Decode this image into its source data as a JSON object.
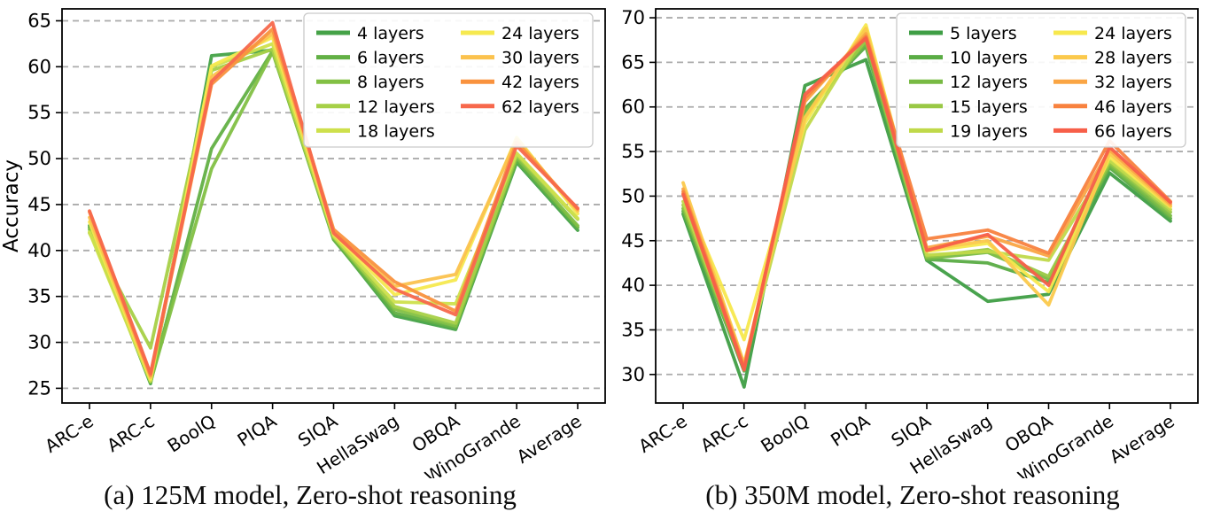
{
  "figure": {
    "caption_a": "(a) 125M model, Zero-shot reasoning",
    "caption_b": "(b) 350M model, Zero-shot reasoning"
  },
  "chart_data": [
    {
      "type": "line",
      "title": "",
      "xlabel": "",
      "ylabel": "Accuracy",
      "ylim": [
        23.4,
        66.3
      ],
      "yticks": [
        25,
        30,
        35,
        40,
        45,
        50,
        55,
        60,
        65
      ],
      "grid": "dashed-horizontal",
      "legend_position": "upper right",
      "legend_suffix": " layers",
      "categories": [
        "ARC-e",
        "ARC-c",
        "BoolQ",
        "PIQA",
        "SIQA",
        "HellaSwag",
        "OBQA",
        "WinoGrande",
        "Average"
      ],
      "series": [
        {
          "name": "4 layers",
          "color": "#45a247",
          "values": [
            42.7,
            25.5,
            61.2,
            61.8,
            41.3,
            32.9,
            31.4,
            49.6,
            42.2
          ]
        },
        {
          "name": "6 layers",
          "color": "#62b045",
          "values": [
            42.5,
            25.6,
            51.1,
            61.7,
            41.2,
            33.2,
            31.6,
            49.8,
            42.5
          ]
        },
        {
          "name": "8 layers",
          "color": "#82c044",
          "values": [
            42.3,
            25.7,
            48.9,
            61.6,
            41.4,
            33.6,
            31.8,
            50.1,
            42.7
          ]
        },
        {
          "name": "12 layers",
          "color": "#a6d047",
          "values": [
            41.9,
            29.4,
            59.6,
            61.9,
            41.5,
            33.9,
            32.1,
            50.4,
            43.4
          ]
        },
        {
          "name": "18 layers",
          "color": "#cee04c",
          "values": [
            42.0,
            25.8,
            60.0,
            62.5,
            41.6,
            34.4,
            34.2,
            50.6,
            43.5
          ]
        },
        {
          "name": "24 layers",
          "color": "#f6e94f",
          "values": [
            43.1,
            26.0,
            60.1,
            63.2,
            41.8,
            35.2,
            36.8,
            52.3,
            44.0
          ]
        },
        {
          "name": "30 layers",
          "color": "#fbc24e",
          "values": [
            43.6,
            26.2,
            58.9,
            63.6,
            42.0,
            36.1,
            37.4,
            52.1,
            44.3
          ]
        },
        {
          "name": "42 layers",
          "color": "#f9923e",
          "values": [
            44.2,
            26.4,
            58.1,
            64.1,
            42.3,
            36.6,
            33.4,
            51.8,
            44.5
          ]
        },
        {
          "name": "62 layers",
          "color": "#f7684c",
          "values": [
            44.3,
            26.6,
            58.4,
            64.8,
            41.9,
            35.8,
            33.0,
            51.4,
            44.6
          ]
        }
      ]
    },
    {
      "type": "line",
      "title": "",
      "xlabel": "",
      "ylabel": "",
      "ylim": [
        26.8,
        71.0
      ],
      "yticks": [
        30,
        35,
        40,
        45,
        50,
        55,
        60,
        65,
        70
      ],
      "grid": "dashed-horizontal",
      "legend_position": "upper right",
      "legend_suffix": " layers",
      "categories": [
        "ARC-e",
        "ARC-c",
        "BoolQ",
        "PIQA",
        "SIQA",
        "HellaSwag",
        "OBQA",
        "WinoGrande",
        "Average"
      ],
      "series": [
        {
          "name": "5 layers",
          "color": "#3f9e45",
          "values": [
            48.0,
            28.6,
            62.4,
            65.3,
            42.8,
            38.2,
            39.0,
            52.6,
            47.2
          ]
        },
        {
          "name": "10 layers",
          "color": "#5aac44",
          "values": [
            48.3,
            30.4,
            59.8,
            66.8,
            42.9,
            42.5,
            40.3,
            53.2,
            47.5
          ]
        },
        {
          "name": "12 layers",
          "color": "#78ba43",
          "values": [
            48.6,
            30.6,
            59.5,
            67.2,
            43.0,
            43.7,
            40.7,
            53.5,
            47.8
          ]
        },
        {
          "name": "15 layers",
          "color": "#99c845",
          "values": [
            49.0,
            30.8,
            58.9,
            67.5,
            43.2,
            44.0,
            41.0,
            53.8,
            48.2
          ]
        },
        {
          "name": "19 layers",
          "color": "#c0d94a",
          "values": [
            49.4,
            31.0,
            57.4,
            68.5,
            43.4,
            43.8,
            42.8,
            54.0,
            48.5
          ]
        },
        {
          "name": "24 layers",
          "color": "#f7e84d",
          "values": [
            50.3,
            33.9,
            58.2,
            69.2,
            43.8,
            44.7,
            39.3,
            54.4,
            48.8
          ]
        },
        {
          "name": "28 layers",
          "color": "#fbc94c",
          "values": [
            51.5,
            31.2,
            58.8,
            68.8,
            44.0,
            45.0,
            37.8,
            54.8,
            48.9
          ]
        },
        {
          "name": "32 layers",
          "color": "#faa544",
          "values": [
            50.8,
            30.9,
            60.6,
            68.2,
            44.2,
            45.5,
            43.3,
            55.2,
            49.1
          ]
        },
        {
          "name": "46 layers",
          "color": "#f8823f",
          "values": [
            50.5,
            30.7,
            61.0,
            67.9,
            45.2,
            46.2,
            43.6,
            56.2,
            49.4
          ]
        },
        {
          "name": "66 layers",
          "color": "#f75f49",
          "values": [
            50.2,
            30.5,
            61.4,
            67.7,
            43.9,
            45.7,
            40.0,
            55.5,
            49.3
          ]
        }
      ]
    }
  ]
}
